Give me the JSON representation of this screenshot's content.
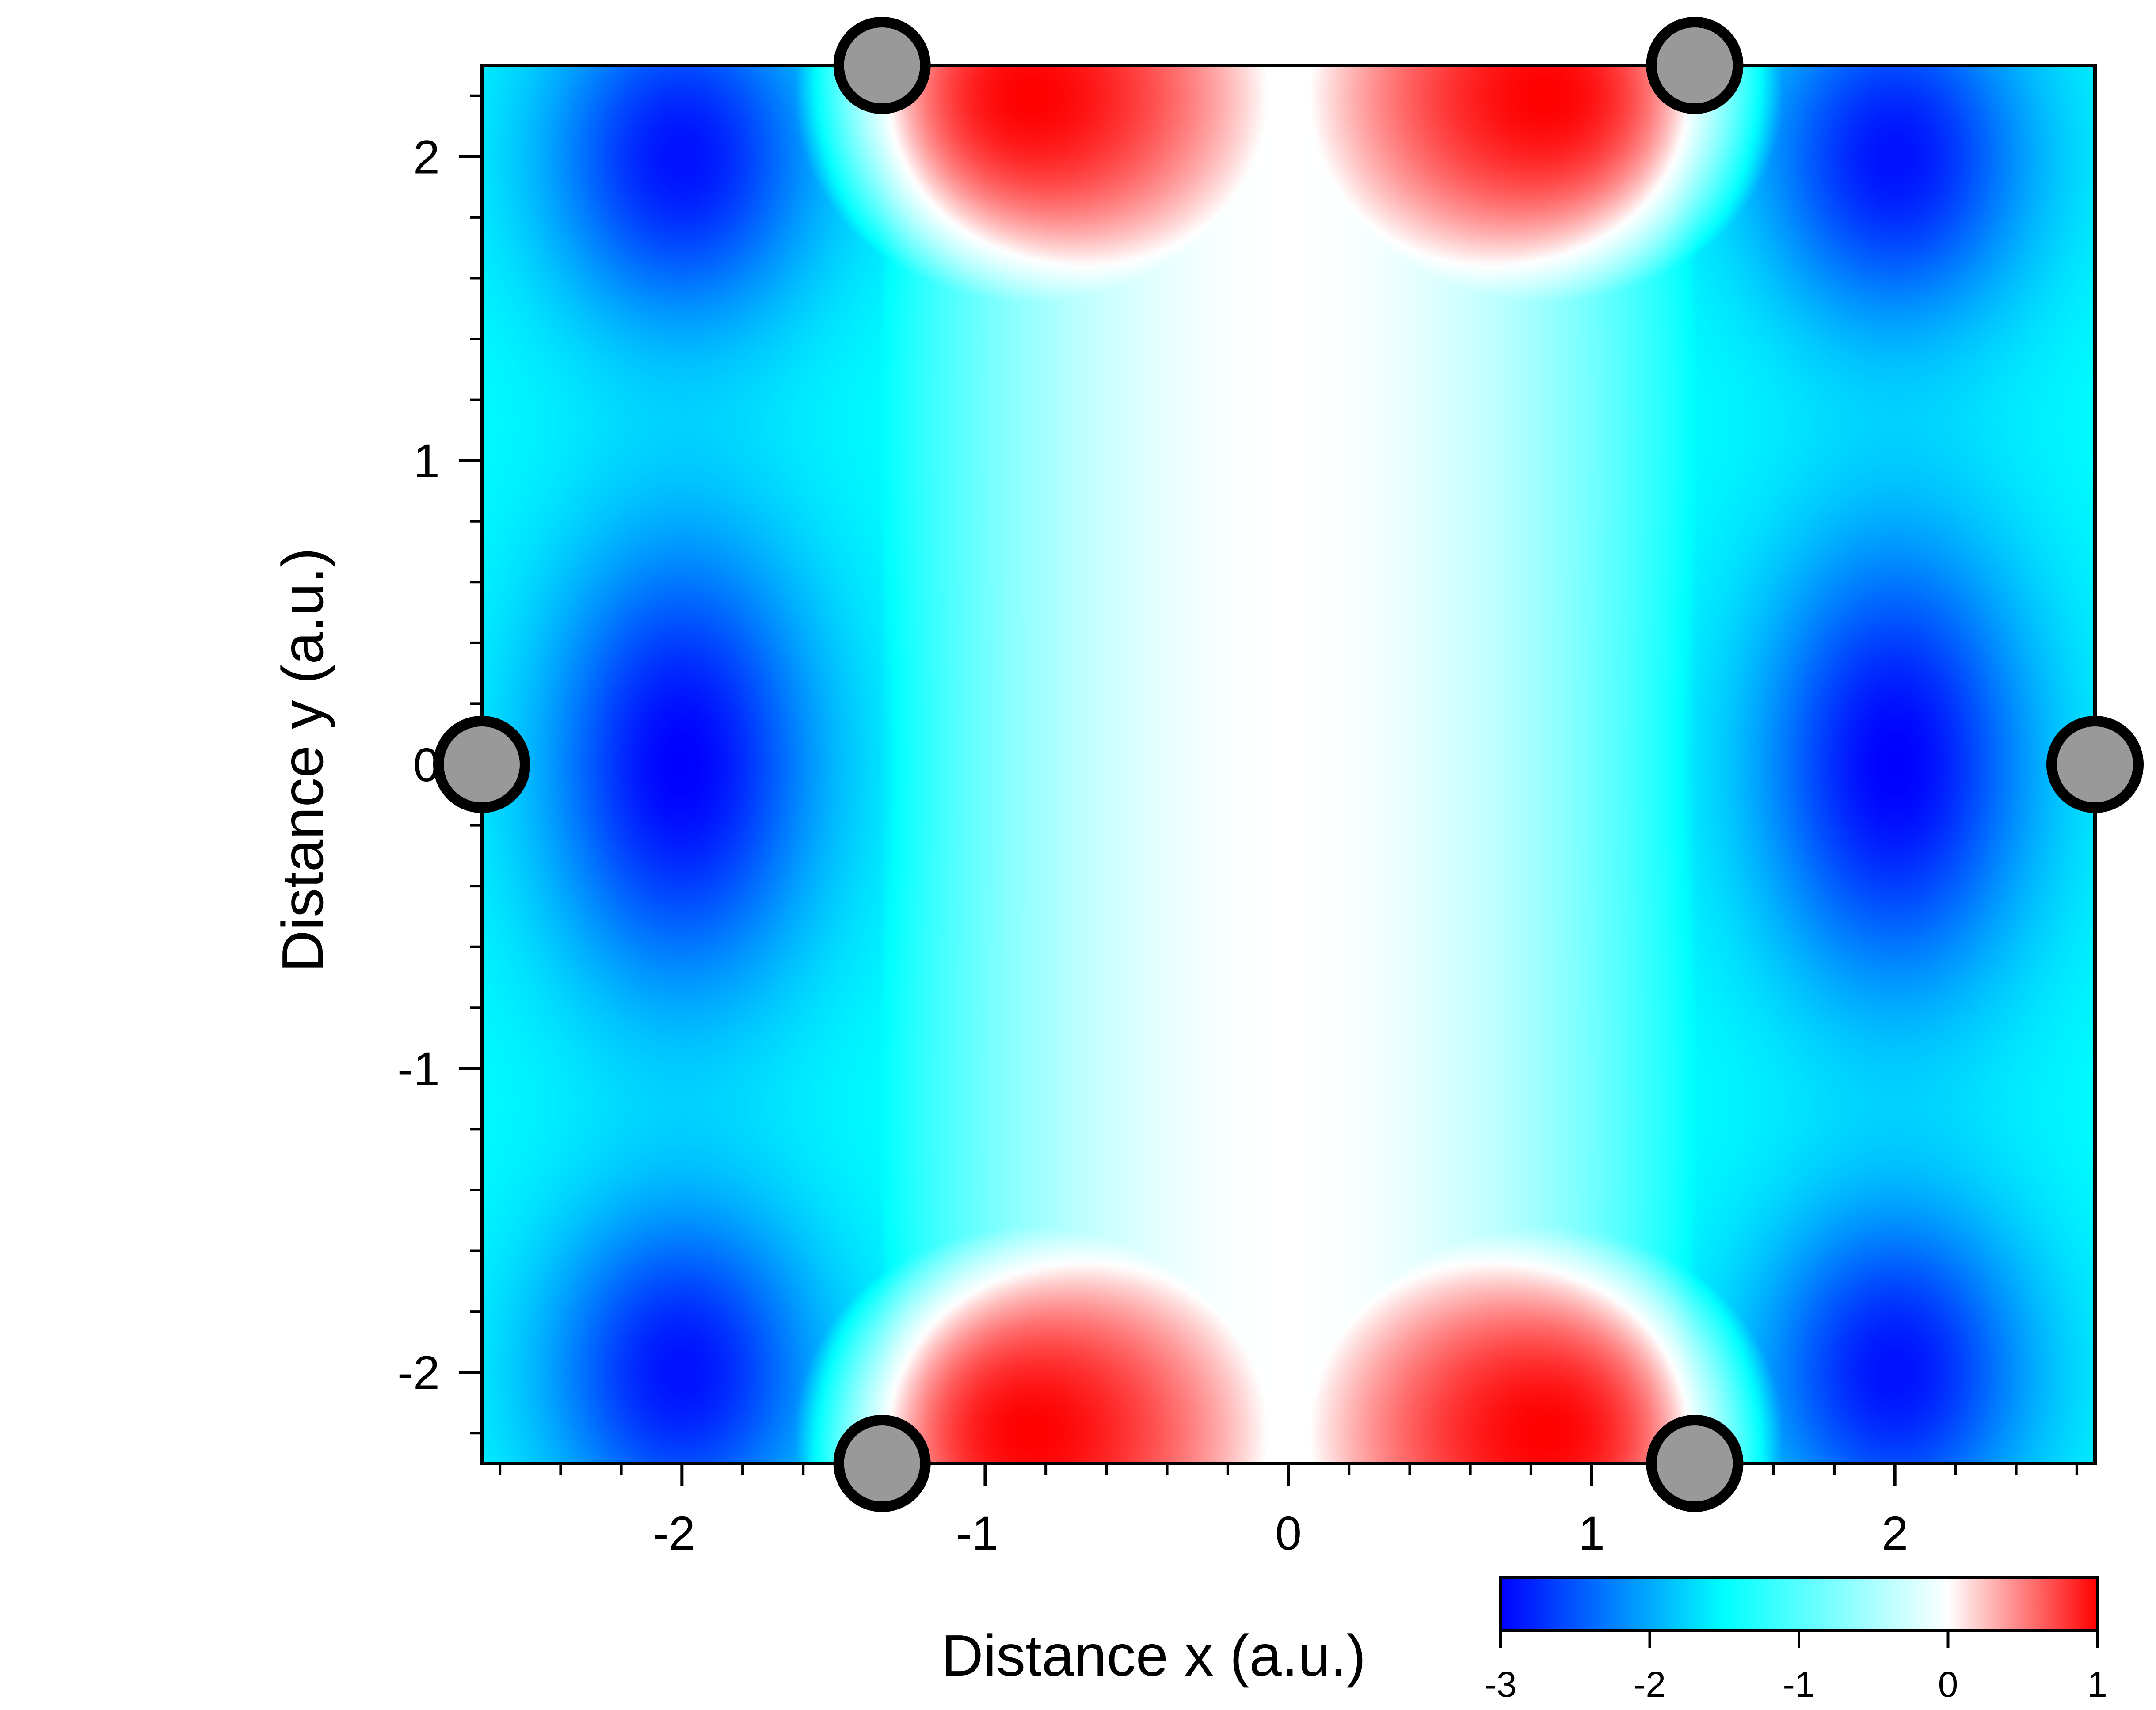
{
  "chart_data": {
    "type": "heatmap",
    "title": "",
    "xlabel": "Distance x (a.u.)",
    "ylabel": "Distance y (a.u.)",
    "xlim": [
      -2.66,
      2.66
    ],
    "ylim": [
      -2.3,
      2.3
    ],
    "x_ticks": [
      {
        "value": -2,
        "label": "-2"
      },
      {
        "value": -1,
        "label": "-1"
      },
      {
        "value": 0,
        "label": "0"
      },
      {
        "value": 1,
        "label": "1"
      },
      {
        "value": 2,
        "label": "2"
      }
    ],
    "y_ticks": [
      {
        "value": 2,
        "label": "2"
      },
      {
        "value": 1,
        "label": "1"
      },
      {
        "value": 0,
        "label": "0"
      },
      {
        "value": -1,
        "label": "-1"
      },
      {
        "value": -2,
        "label": "-2"
      }
    ],
    "minor_tick_step": 0.2,
    "grid": false,
    "colorbar": {
      "range": [
        -3,
        1
      ],
      "ticks": [
        {
          "value": -3,
          "label": "-3"
        },
        {
          "value": -2,
          "label": "-2"
        },
        {
          "value": -1,
          "label": "-1"
        },
        {
          "value": 0,
          "label": "0"
        },
        {
          "value": 1,
          "label": "1"
        }
      ],
      "colors": [
        {
          "value": -3,
          "color": "#0000ff"
        },
        {
          "value": -1.5,
          "color": "#00ffff"
        },
        {
          "value": 0,
          "color": "#ffffff"
        },
        {
          "value": 1,
          "color": "#ff0000"
        }
      ]
    },
    "field_features": [
      {
        "x": -2.0,
        "y": 0.0,
        "value": -3.0
      },
      {
        "x": 2.0,
        "y": 0.0,
        "value": -3.0
      },
      {
        "x": -2.0,
        "y": 2.0,
        "value": -2.9
      },
      {
        "x": 2.0,
        "y": 2.0,
        "value": -2.9
      },
      {
        "x": -2.0,
        "y": -2.0,
        "value": -2.9
      },
      {
        "x": 2.0,
        "y": -2.0,
        "value": -2.9
      },
      {
        "x": -0.85,
        "y": 2.2,
        "value": 1.0
      },
      {
        "x": 0.85,
        "y": 2.2,
        "value": 1.0
      },
      {
        "x": -0.85,
        "y": -2.2,
        "value": 1.0
      },
      {
        "x": 0.85,
        "y": -2.2,
        "value": 1.0
      },
      {
        "x": 0.0,
        "y": 0.0,
        "value": 0.0
      }
    ],
    "atoms": [
      {
        "x": -1.34,
        "y": 2.3
      },
      {
        "x": 1.34,
        "y": 2.3
      },
      {
        "x": -2.66,
        "y": 0.0
      },
      {
        "x": 2.66,
        "y": 0.0
      },
      {
        "x": -1.34,
        "y": -2.3
      },
      {
        "x": 1.34,
        "y": -2.3
      }
    ],
    "atom_style": {
      "fill": "#999999",
      "stroke": "#000000"
    }
  }
}
